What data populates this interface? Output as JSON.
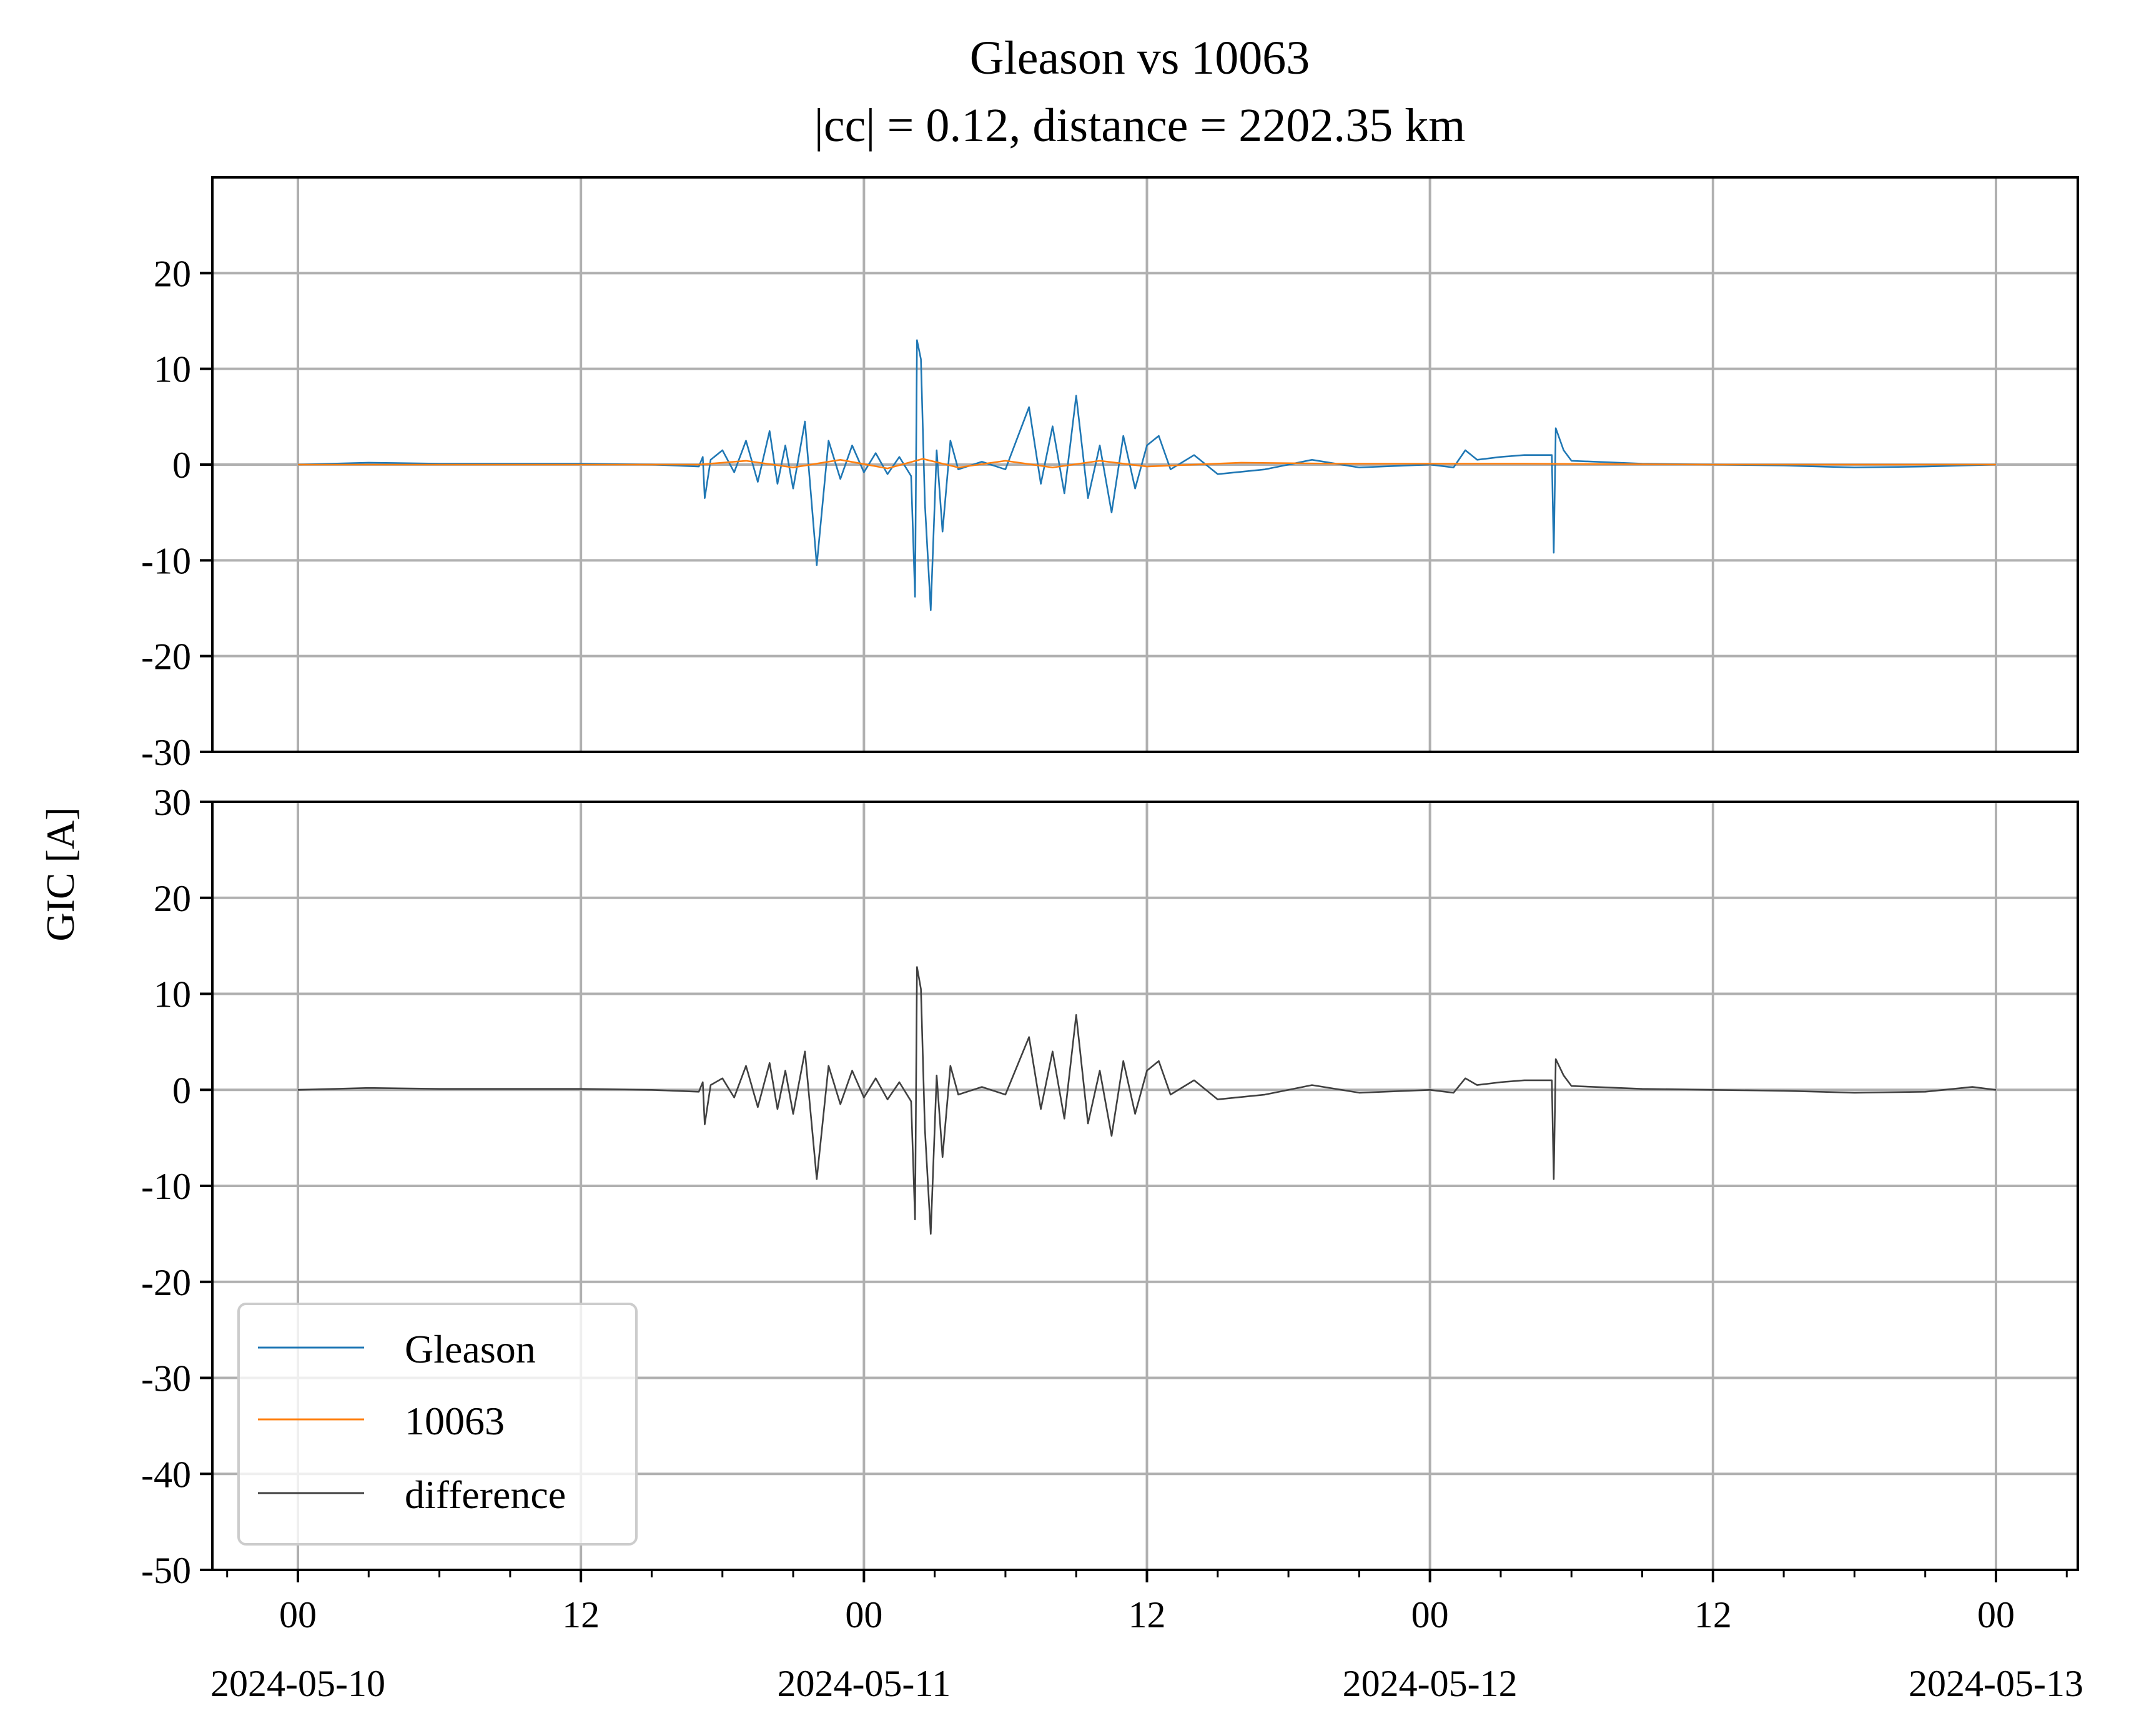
{
  "chart_data": {
    "type": "line",
    "title": "Gleason vs 10063",
    "subtitle": "|cc| = 0.12, distance = 2202.35 km",
    "ylabel": "GIC [A]",
    "xlabel": "",
    "x_range": [
      "2024-05-10 00:00",
      "2024-05-13 00:00"
    ],
    "x_tick_labels": [
      {
        "time": "2024-05-10 00:00",
        "hour": "00",
        "date": "2024-05-10"
      },
      {
        "time": "2024-05-10 12:00",
        "hour": "12",
        "date": ""
      },
      {
        "time": "2024-05-11 00:00",
        "hour": "00",
        "date": "2024-05-11"
      },
      {
        "time": "2024-05-11 12:00",
        "hour": "12",
        "date": ""
      },
      {
        "time": "2024-05-12 00:00",
        "hour": "00",
        "date": "2024-05-12"
      },
      {
        "time": "2024-05-12 12:00",
        "hour": "12",
        "date": ""
      },
      {
        "time": "2024-05-13 00:00",
        "hour": "00",
        "date": "2024-05-13"
      }
    ],
    "grid": true,
    "legend_position": "lower-left",
    "legend": [
      "Gleason",
      "10063",
      "difference"
    ],
    "panels": [
      {
        "name": "top",
        "ylim": [
          -30,
          30
        ],
        "yticks": [
          {
            "value": 20,
            "label": "20"
          },
          {
            "value": 10,
            "label": "10"
          },
          {
            "value": 0,
            "label": "0"
          },
          {
            "value": -10,
            "label": "-10"
          },
          {
            "value": -20,
            "label": "-20"
          },
          {
            "value": -30,
            "label": "-30"
          }
        ],
        "series": [
          {
            "name": "Gleason",
            "color": "#1f77b4",
            "points": [
              [
                "2024-05-10 00:00",
                0.0
              ],
              [
                "2024-05-10 03:00",
                0.2
              ],
              [
                "2024-05-10 06:00",
                0.1
              ],
              [
                "2024-05-10 09:00",
                0.1
              ],
              [
                "2024-05-10 12:00",
                0.1
              ],
              [
                "2024-05-10 15:00",
                0.0
              ],
              [
                "2024-05-10 17:00",
                -0.2
              ],
              [
                "2024-05-10 17:10",
                0.8
              ],
              [
                "2024-05-10 17:15",
                -3.5
              ],
              [
                "2024-05-10 17:30",
                0.5
              ],
              [
                "2024-05-10 18:00",
                1.5
              ],
              [
                "2024-05-10 18:30",
                -0.8
              ],
              [
                "2024-05-10 19:00",
                2.5
              ],
              [
                "2024-05-10 19:30",
                -1.8
              ],
              [
                "2024-05-10 20:00",
                3.5
              ],
              [
                "2024-05-10 20:20",
                -2.0
              ],
              [
                "2024-05-10 20:40",
                2.0
              ],
              [
                "2024-05-10 21:00",
                -2.5
              ],
              [
                "2024-05-10 21:30",
                4.5
              ],
              [
                "2024-05-10 22:00",
                -10.5
              ],
              [
                "2024-05-10 22:30",
                2.5
              ],
              [
                "2024-05-10 23:00",
                -1.5
              ],
              [
                "2024-05-10 23:30",
                2.0
              ],
              [
                "2024-05-11 00:00",
                -0.8
              ],
              [
                "2024-05-11 00:30",
                1.2
              ],
              [
                "2024-05-11 01:00",
                -1.0
              ],
              [
                "2024-05-11 01:30",
                0.8
              ],
              [
                "2024-05-11 02:00",
                -1.2
              ],
              [
                "2024-05-11 02:10",
                -13.8
              ],
              [
                "2024-05-11 02:15",
                13.0
              ],
              [
                "2024-05-11 02:25",
                11.0
              ],
              [
                "2024-05-11 02:35",
                -4.0
              ],
              [
                "2024-05-11 02:50",
                -15.2
              ],
              [
                "2024-05-11 03:05",
                1.5
              ],
              [
                "2024-05-11 03:20",
                -7.0
              ],
              [
                "2024-05-11 03:40",
                2.5
              ],
              [
                "2024-05-11 04:00",
                -0.5
              ],
              [
                "2024-05-11 05:00",
                0.3
              ],
              [
                "2024-05-11 06:00",
                -0.5
              ],
              [
                "2024-05-11 07:00",
                6.0
              ],
              [
                "2024-05-11 07:30",
                -2.0
              ],
              [
                "2024-05-11 08:00",
                4.0
              ],
              [
                "2024-05-11 08:30",
                -3.0
              ],
              [
                "2024-05-11 09:00",
                7.2
              ],
              [
                "2024-05-11 09:30",
                -3.5
              ],
              [
                "2024-05-11 10:00",
                2.0
              ],
              [
                "2024-05-11 10:30",
                -5.0
              ],
              [
                "2024-05-11 11:00",
                3.0
              ],
              [
                "2024-05-11 11:30",
                -2.5
              ],
              [
                "2024-05-11 12:00",
                2.0
              ],
              [
                "2024-05-11 12:30",
                3.0
              ],
              [
                "2024-05-11 13:00",
                -0.5
              ],
              [
                "2024-05-11 14:00",
                1.0
              ],
              [
                "2024-05-11 15:00",
                -1.0
              ],
              [
                "2024-05-11 17:00",
                -0.5
              ],
              [
                "2024-05-11 19:00",
                0.5
              ],
              [
                "2024-05-11 21:00",
                -0.3
              ],
              [
                "2024-05-12 00:00",
                0.0
              ],
              [
                "2024-05-12 01:00",
                -0.3
              ],
              [
                "2024-05-12 01:30",
                1.5
              ],
              [
                "2024-05-12 02:00",
                0.5
              ],
              [
                "2024-05-12 03:00",
                0.8
              ],
              [
                "2024-05-12 04:00",
                1.0
              ],
              [
                "2024-05-12 05:10",
                1.0
              ],
              [
                "2024-05-12 05:15",
                -9.2
              ],
              [
                "2024-05-12 05:20",
                3.8
              ],
              [
                "2024-05-12 05:40",
                1.5
              ],
              [
                "2024-05-12 06:00",
                0.4
              ],
              [
                "2024-05-12 09:00",
                0.1
              ],
              [
                "2024-05-12 12:00",
                0.0
              ],
              [
                "2024-05-12 15:00",
                -0.1
              ],
              [
                "2024-05-12 18:00",
                -0.3
              ],
              [
                "2024-05-12 21:00",
                -0.2
              ],
              [
                "2024-05-13 00:00",
                0.0
              ]
            ]
          },
          {
            "name": "10063",
            "color": "#ff7f0e",
            "points": [
              [
                "2024-05-10 00:00",
                0.0
              ],
              [
                "2024-05-10 12:00",
                0.0
              ],
              [
                "2024-05-10 17:00",
                0.0
              ],
              [
                "2024-05-10 19:00",
                0.4
              ],
              [
                "2024-05-10 21:00",
                -0.3
              ],
              [
                "2024-05-10 23:00",
                0.5
              ],
              [
                "2024-05-11 01:00",
                -0.4
              ],
              [
                "2024-05-11 02:30",
                0.6
              ],
              [
                "2024-05-11 04:00",
                -0.3
              ],
              [
                "2024-05-11 06:00",
                0.4
              ],
              [
                "2024-05-11 08:00",
                -0.3
              ],
              [
                "2024-05-11 10:00",
                0.4
              ],
              [
                "2024-05-11 12:00",
                -0.2
              ],
              [
                "2024-05-11 16:00",
                0.2
              ],
              [
                "2024-05-11 20:00",
                0.1
              ],
              [
                "2024-05-12 00:00",
                0.1
              ],
              [
                "2024-05-12 04:00",
                0.1
              ],
              [
                "2024-05-12 12:00",
                0.0
              ],
              [
                "2024-05-13 00:00",
                0.0
              ]
            ]
          }
        ]
      },
      {
        "name": "bottom",
        "ylim": [
          -50,
          30
        ],
        "yticks": [
          {
            "value": 30,
            "label": "30"
          },
          {
            "value": 20,
            "label": "20"
          },
          {
            "value": 10,
            "label": "10"
          },
          {
            "value": 0,
            "label": "0"
          },
          {
            "value": -10,
            "label": "-10"
          },
          {
            "value": -20,
            "label": "-20"
          },
          {
            "value": -30,
            "label": "-30"
          },
          {
            "value": -40,
            "label": "-40"
          },
          {
            "value": -50,
            "label": "-50"
          }
        ],
        "series": [
          {
            "name": "difference",
            "color": "#404040",
            "points": [
              [
                "2024-05-10 00:00",
                0.0
              ],
              [
                "2024-05-10 03:00",
                0.2
              ],
              [
                "2024-05-10 06:00",
                0.1
              ],
              [
                "2024-05-10 09:00",
                0.1
              ],
              [
                "2024-05-10 12:00",
                0.1
              ],
              [
                "2024-05-10 15:00",
                0.0
              ],
              [
                "2024-05-10 17:00",
                -0.2
              ],
              [
                "2024-05-10 17:10",
                0.8
              ],
              [
                "2024-05-10 17:15",
                -3.6
              ],
              [
                "2024-05-10 17:30",
                0.5
              ],
              [
                "2024-05-10 18:00",
                1.2
              ],
              [
                "2024-05-10 18:30",
                -0.8
              ],
              [
                "2024-05-10 19:00",
                2.5
              ],
              [
                "2024-05-10 19:30",
                -1.8
              ],
              [
                "2024-05-10 20:00",
                2.8
              ],
              [
                "2024-05-10 20:20",
                -2.0
              ],
              [
                "2024-05-10 20:40",
                2.0
              ],
              [
                "2024-05-10 21:00",
                -2.5
              ],
              [
                "2024-05-10 21:30",
                4.0
              ],
              [
                "2024-05-10 22:00",
                -9.3
              ],
              [
                "2024-05-10 22:30",
                2.5
              ],
              [
                "2024-05-10 23:00",
                -1.5
              ],
              [
                "2024-05-10 23:30",
                2.0
              ],
              [
                "2024-05-11 00:00",
                -0.8
              ],
              [
                "2024-05-11 00:30",
                1.2
              ],
              [
                "2024-05-11 01:00",
                -1.0
              ],
              [
                "2024-05-11 01:30",
                0.8
              ],
              [
                "2024-05-11 02:00",
                -1.2
              ],
              [
                "2024-05-11 02:10",
                -13.5
              ],
              [
                "2024-05-11 02:15",
                12.8
              ],
              [
                "2024-05-11 02:25",
                10.5
              ],
              [
                "2024-05-11 02:35",
                -4.0
              ],
              [
                "2024-05-11 02:50",
                -15.0
              ],
              [
                "2024-05-11 03:05",
                1.5
              ],
              [
                "2024-05-11 03:20",
                -7.0
              ],
              [
                "2024-05-11 03:40",
                2.5
              ],
              [
                "2024-05-11 04:00",
                -0.5
              ],
              [
                "2024-05-11 05:00",
                0.3
              ],
              [
                "2024-05-11 06:00",
                -0.5
              ],
              [
                "2024-05-11 07:00",
                5.5
              ],
              [
                "2024-05-11 07:30",
                -2.0
              ],
              [
                "2024-05-11 08:00",
                4.0
              ],
              [
                "2024-05-11 08:30",
                -3.0
              ],
              [
                "2024-05-11 09:00",
                7.8
              ],
              [
                "2024-05-11 09:30",
                -3.5
              ],
              [
                "2024-05-11 10:00",
                2.0
              ],
              [
                "2024-05-11 10:30",
                -4.8
              ],
              [
                "2024-05-11 11:00",
                3.0
              ],
              [
                "2024-05-11 11:30",
                -2.5
              ],
              [
                "2024-05-11 12:00",
                2.0
              ],
              [
                "2024-05-11 12:30",
                3.0
              ],
              [
                "2024-05-11 13:00",
                -0.5
              ],
              [
                "2024-05-11 14:00",
                1.0
              ],
              [
                "2024-05-11 15:00",
                -1.0
              ],
              [
                "2024-05-11 17:00",
                -0.5
              ],
              [
                "2024-05-11 19:00",
                0.5
              ],
              [
                "2024-05-11 21:00",
                -0.3
              ],
              [
                "2024-05-12 00:00",
                0.0
              ],
              [
                "2024-05-12 01:00",
                -0.3
              ],
              [
                "2024-05-12 01:30",
                1.2
              ],
              [
                "2024-05-12 02:00",
                0.5
              ],
              [
                "2024-05-12 03:00",
                0.8
              ],
              [
                "2024-05-12 04:00",
                1.0
              ],
              [
                "2024-05-12 05:10",
                1.0
              ],
              [
                "2024-05-12 05:15",
                -9.3
              ],
              [
                "2024-05-12 05:20",
                3.2
              ],
              [
                "2024-05-12 05:40",
                1.5
              ],
              [
                "2024-05-12 06:00",
                0.4
              ],
              [
                "2024-05-12 09:00",
                0.1
              ],
              [
                "2024-05-12 12:00",
                0.0
              ],
              [
                "2024-05-12 15:00",
                -0.1
              ],
              [
                "2024-05-12 18:00",
                -0.3
              ],
              [
                "2024-05-12 21:00",
                -0.2
              ],
              [
                "2024-05-12 23:00",
                0.3
              ],
              [
                "2024-05-13 00:00",
                0.0
              ]
            ]
          }
        ]
      }
    ]
  }
}
